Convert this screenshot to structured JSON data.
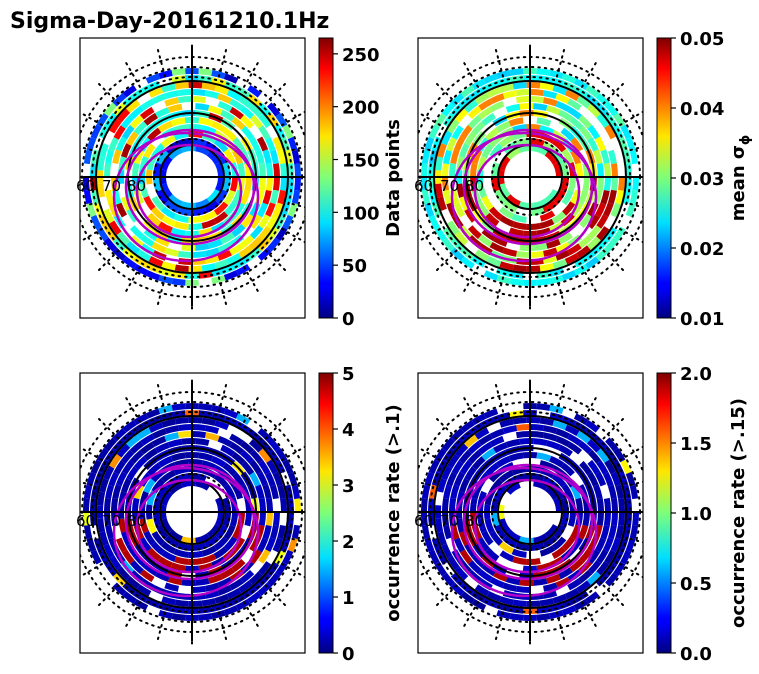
{
  "title": "Sigma-Day-20161210.1Hz",
  "panels": [
    {
      "id": "data-points",
      "colorbar_label": "Data points",
      "vmin": 0,
      "vmax": 265,
      "ticks": [
        "0",
        "50",
        "100",
        "150",
        "200",
        "250"
      ],
      "tick_values": [
        0,
        50,
        100,
        150,
        200,
        250
      ],
      "dist": "points",
      "mlat_labels": [
        "60",
        "70",
        "80"
      ]
    },
    {
      "id": "mean-sigma",
      "colorbar_label": "mean σ",
      "colorbar_label_sub": "ϕ",
      "vmin": 0.01,
      "vmax": 0.05,
      "ticks": [
        "0.01",
        "0.02",
        "0.03",
        "0.04",
        "0.05"
      ],
      "tick_values": [
        0.01,
        0.02,
        0.03,
        0.04,
        0.05
      ],
      "dist": "sigma",
      "mlat_labels": [
        "60",
        "70",
        "80"
      ]
    },
    {
      "id": "occurrence-rate-1",
      "colorbar_label": "occurrence rate (>.1)",
      "vmin": 0,
      "vmax": 5,
      "ticks": [
        "0",
        "1",
        "2",
        "3",
        "4",
        "5"
      ],
      "tick_values": [
        0,
        1,
        2,
        3,
        4,
        5
      ],
      "dist": "occurrence",
      "mlat_labels": [
        "60",
        "70",
        "80"
      ]
    },
    {
      "id": "occurrence-rate-15",
      "colorbar_label": "occurrence rate (>.15)",
      "vmin": 0,
      "vmax": 2,
      "ticks": [
        "0.0",
        "0.5",
        "1.0",
        "1.5",
        "2.0"
      ],
      "tick_values": [
        0,
        0.5,
        1.0,
        1.5,
        2.0
      ],
      "dist": "occurrence",
      "mlat_labels": [
        "60",
        "70",
        "80"
      ]
    }
  ],
  "chart_data": {
    "type": "heatmap",
    "projection": "polar (magnetic latitude / MLT)",
    "colormap": "jet",
    "overlay": "auroral oval boundaries (magenta)"
  }
}
